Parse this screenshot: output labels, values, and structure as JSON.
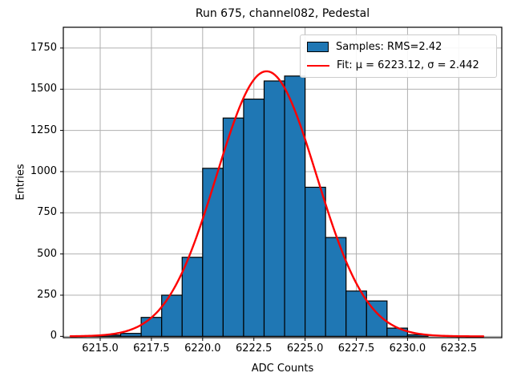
{
  "title": "Run 675, channel082, Pedestal",
  "axes": {
    "xlabel": "ADC Counts",
    "ylabel": "Entries"
  },
  "legend": {
    "samples_label": "Samples: RMS=2.42",
    "fit_label": "Fit: μ = 6223.12, σ = 2.442"
  },
  "colors": {
    "bar_fill": "#1f77b4",
    "bar_edge": "#000000",
    "fit_line": "#ff0000",
    "grid": "#b0b0b0",
    "spine": "#000000",
    "background": "#ffffff"
  },
  "chart_data": {
    "type": "bar",
    "subtype": "histogram",
    "title": "Run 675, channel082, Pedestal",
    "xlabel": "ADC Counts",
    "ylabel": "Entries",
    "bin_edges": [
      6214,
      6215,
      6216,
      6217,
      6218,
      6219,
      6220,
      6221,
      6222,
      6223,
      6224,
      6225,
      6226,
      6227,
      6228,
      6229,
      6230,
      6231
    ],
    "values": [
      2,
      8,
      18,
      115,
      250,
      480,
      1020,
      1325,
      1440,
      1550,
      1580,
      905,
      600,
      275,
      215,
      50,
      10
    ],
    "x_ticks": [
      6215.0,
      6217.5,
      6220.0,
      6222.5,
      6225.0,
      6227.5,
      6230.0,
      6232.5
    ],
    "x_tick_labels": [
      "6215.0",
      "6217.5",
      "6220.0",
      "6222.5",
      "6225.0",
      "6227.5",
      "6230.0",
      "6232.5"
    ],
    "y_ticks": [
      0,
      250,
      500,
      750,
      1000,
      1250,
      1500,
      1750
    ],
    "y_tick_labels": [
      "0",
      "250",
      "500",
      "750",
      "1000",
      "1250",
      "1500",
      "1750"
    ],
    "xlim": [
      6213.2,
      6234.6
    ],
    "ylim": [
      -8,
      1876
    ],
    "grid": true,
    "legend_position": "upper right",
    "legend_entries": [
      "Samples: RMS=2.42",
      "Fit: μ = 6223.12, σ = 2.442"
    ],
    "fit": {
      "type": "gaussian",
      "mu": 6223.12,
      "sigma": 2.442,
      "rms": 2.42,
      "amplitude": 1609,
      "x_start": 6213.55,
      "x_end": 6233.7
    }
  }
}
